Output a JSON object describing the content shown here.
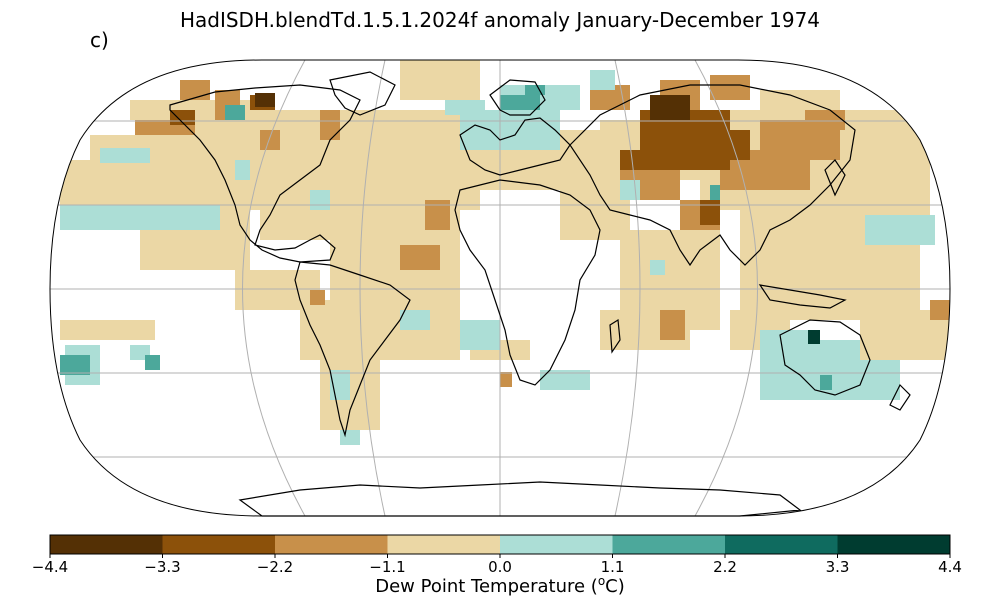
{
  "title": "HadISDH.blendTd.1.5.1.2024f anomaly January-December 1974",
  "panel_label": "c)",
  "colorbar": {
    "label_prefix": "Dew Point Temperature (",
    "label_sup": "o",
    "label_suffix": "C)",
    "ticks": [
      "−4.4",
      "−3.3",
      "−2.2",
      "−1.1",
      "0.0",
      "1.1",
      "2.2",
      "3.3",
      "4.4"
    ],
    "bins": [
      {
        "range": [
          -4.4,
          -3.3
        ],
        "color": "#543005"
      },
      {
        "range": [
          -3.3,
          -2.2
        ],
        "color": "#8c510a"
      },
      {
        "range": [
          -2.2,
          -1.1
        ],
        "color": "#c8904a"
      },
      {
        "range": [
          -1.1,
          0.0
        ],
        "color": "#ebd7a5"
      },
      {
        "range": [
          0.0,
          1.1
        ],
        "color": "#acded6"
      },
      {
        "range": [
          1.1,
          2.2
        ],
        "color": "#4ca89b"
      },
      {
        "range": [
          2.2,
          3.3
        ],
        "color": "#0f6b5f"
      },
      {
        "range": [
          3.3,
          4.4
        ],
        "color": "#003c30"
      }
    ]
  },
  "map": {
    "projection": "Robinson",
    "grid_lines": true,
    "colors": {
      "coastline": "#000000",
      "gridline": "#b0b0b0"
    }
  }
}
